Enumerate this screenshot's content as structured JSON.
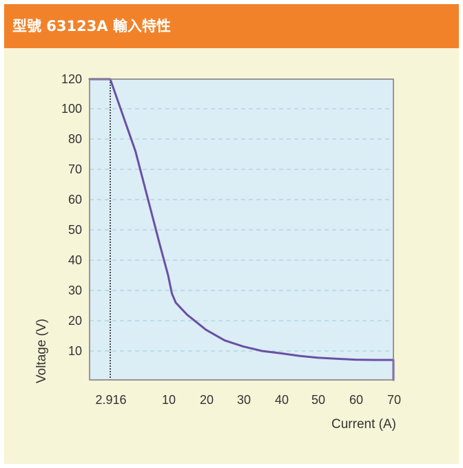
{
  "header": {
    "title": "型號 63123A 輸入特性"
  },
  "colors": {
    "header_bg": "#f28229",
    "panel_bg": "#f6f5d8",
    "plot_bg": "#dbedf5",
    "line": "#6a4fa4",
    "grid": "#9ccbd9"
  },
  "chart_data": {
    "type": "line",
    "title": "型號 63123A 輸入特性",
    "xlabel": "Current (A)",
    "ylabel": "Voltage (V)",
    "grid": true,
    "y_ticks": [
      {
        "label": "120",
        "value": 120
      },
      {
        "label": "100",
        "value": 100
      },
      {
        "label": "80",
        "value": 80
      },
      {
        "label": "70",
        "value": 70
      },
      {
        "label": "60",
        "value": 60
      },
      {
        "label": "50",
        "value": 50
      },
      {
        "label": "40",
        "value": 40
      },
      {
        "label": "30",
        "value": 30
      },
      {
        "label": "20",
        "value": 20
      },
      {
        "label": "10",
        "value": 10
      }
    ],
    "x_ticks": [
      "2.916",
      "10",
      "20",
      "30",
      "40",
      "50",
      "60",
      "70"
    ],
    "marker": {
      "x": "2.916",
      "y": 120,
      "style": "dotted"
    },
    "series": [
      {
        "points": [
          {
            "x": 0,
            "y": 120
          },
          {
            "x": 2.916,
            "y": 120
          },
          {
            "x": 6,
            "y": 76
          },
          {
            "x": 9,
            "y": 45
          },
          {
            "x": 10,
            "y": 35
          },
          {
            "x": 11,
            "y": 29
          },
          {
            "x": 12,
            "y": 26
          },
          {
            "x": 15,
            "y": 22
          },
          {
            "x": 20,
            "y": 17
          },
          {
            "x": 25,
            "y": 13.5
          },
          {
            "x": 30,
            "y": 11.5
          },
          {
            "x": 35,
            "y": 10
          },
          {
            "x": 40,
            "y": 9.2
          },
          {
            "x": 45,
            "y": 8.3
          },
          {
            "x": 50,
            "y": 7.7
          },
          {
            "x": 55,
            "y": 7.3
          },
          {
            "x": 60,
            "y": 7.0
          },
          {
            "x": 65,
            "y": 6.9
          },
          {
            "x": 70,
            "y": 6.9
          },
          {
            "x": 70,
            "y": 0
          }
        ]
      }
    ]
  }
}
